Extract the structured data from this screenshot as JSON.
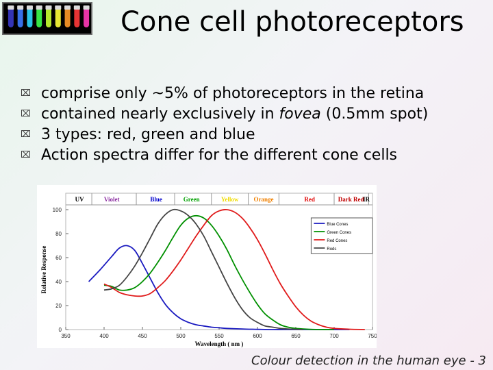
{
  "slide": {
    "title": "Cone cell photoreceptors",
    "bullets": [
      {
        "pre": "comprise only ~5% of photoreceptors in the retina",
        "italic": "",
        "post": ""
      },
      {
        "pre": "contained nearly exclusively in ",
        "italic": "fovea",
        "post": " (0.5mm spot)"
      },
      {
        "pre": "3 types: red, green and blue",
        "italic": "",
        "post": ""
      },
      {
        "pre": "Action spectra differ for the different cone cells",
        "italic": "",
        "post": ""
      }
    ],
    "bullet_icon": "x-box-icon",
    "footer": "Colour detection in the human eye - 3"
  },
  "logo": {
    "icon": "test-tubes-icon",
    "tube_colors": [
      "#3a3ac8",
      "#3d7cff",
      "#2fd9ff",
      "#3cff4c",
      "#c8ff32",
      "#ffff3a",
      "#ff9a28",
      "#ff3a3a",
      "#ff3ab8"
    ]
  },
  "chart_data": {
    "type": "line",
    "xlabel": "Wavelength  ( nm )",
    "ylabel": "Relative Response",
    "xlim": [
      350,
      750
    ],
    "ylim": [
      0,
      100
    ],
    "xticks": [
      350,
      400,
      450,
      500,
      550,
      600,
      650,
      700,
      750
    ],
    "yticks": [
      0,
      20,
      40,
      60,
      80,
      100
    ],
    "spectrum_bands": [
      {
        "label": "UV",
        "color": "#000000",
        "center": 368
      },
      {
        "label": "Violet",
        "color": "#8a2ba0",
        "center": 410
      },
      {
        "label": "Blue",
        "color": "#0000cc",
        "center": 468
      },
      {
        "label": "Green",
        "color": "#00a000",
        "center": 514
      },
      {
        "label": "Yellow",
        "color": "#f0dc00",
        "center": 564
      },
      {
        "label": "Orange",
        "color": "#f08000",
        "center": 608
      },
      {
        "label": "Red",
        "color": "#e00000",
        "center": 668
      },
      {
        "label": "Dark Red",
        "color": "#c00000",
        "center": 722
      },
      {
        "label": "IR",
        "color": "#000000",
        "center": 766
      }
    ],
    "band_separators": [
      384,
      442,
      492,
      540,
      588,
      628,
      700,
      745
    ],
    "legend_position": "right",
    "series": [
      {
        "name": "Blue Cones",
        "color": "#1a1ac0",
        "x": [
          380,
          395,
          410,
          420,
          430,
          440,
          450,
          460,
          470,
          480,
          490,
          500,
          510,
          520,
          530,
          540,
          550,
          560,
          580,
          600,
          620,
          640,
          660,
          680,
          700,
          720
        ],
        "y": [
          40,
          50,
          61,
          68,
          70,
          66,
          55,
          43,
          31,
          21,
          14,
          9,
          6,
          4,
          3,
          2,
          1.5,
          1,
          0.5,
          0.2,
          0,
          0,
          0,
          0,
          0,
          0
        ]
      },
      {
        "name": "Green Cones",
        "color": "#009000",
        "x": [
          400,
          410,
          420,
          430,
          440,
          450,
          460,
          470,
          480,
          490,
          500,
          510,
          520,
          530,
          540,
          550,
          560,
          570,
          580,
          590,
          600,
          610,
          620,
          630,
          640,
          650,
          660,
          680,
          700
        ],
        "y": [
          37,
          36,
          33,
          33,
          35,
          40,
          47,
          56,
          66,
          77,
          87,
          93,
          95,
          93,
          87,
          78,
          67,
          54,
          42,
          31,
          21,
          13,
          8,
          4,
          2,
          1,
          0.5,
          0,
          0
        ]
      },
      {
        "name": "Red Cones",
        "color": "#e01a1a",
        "x": [
          400,
          410,
          420,
          430,
          440,
          450,
          460,
          470,
          480,
          490,
          500,
          510,
          520,
          530,
          540,
          550,
          560,
          570,
          580,
          590,
          600,
          610,
          620,
          630,
          640,
          650,
          660,
          670,
          680,
          690,
          700,
          720,
          740
        ],
        "y": [
          38,
          35,
          31,
          29,
          28,
          28,
          30,
          35,
          41,
          49,
          58,
          68,
          78,
          87,
          95,
          99,
          100,
          98,
          93,
          85,
          75,
          63,
          50,
          38,
          28,
          19,
          12,
          7,
          4,
          2,
          1,
          0.3,
          0
        ]
      },
      {
        "name": "Rods",
        "color": "#444444",
        "x": [
          400,
          410,
          420,
          430,
          440,
          450,
          460,
          470,
          480,
          490,
          500,
          510,
          520,
          530,
          540,
          550,
          560,
          570,
          580,
          590,
          600,
          610,
          620,
          630,
          640,
          660
        ],
        "y": [
          33,
          34,
          37,
          44,
          53,
          64,
          76,
          88,
          96,
          100,
          99,
          95,
          88,
          78,
          65,
          52,
          39,
          27,
          17,
          10,
          6,
          3,
          2,
          1,
          0.5,
          0
        ]
      }
    ]
  }
}
